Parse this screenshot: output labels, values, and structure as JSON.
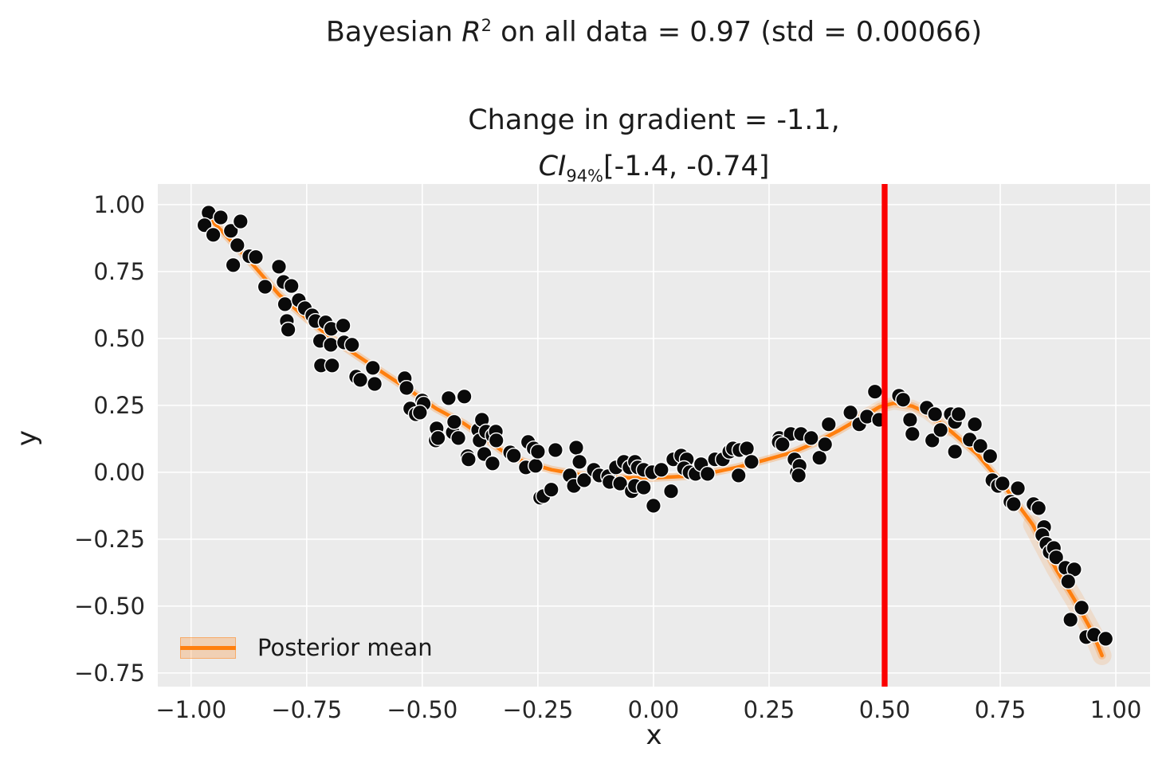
{
  "header": {
    "suptitle": {
      "pre": "Bayesian ",
      "var": "R",
      "sup": "2",
      "post": " on all data = 0.97 (std = 0.00066)"
    },
    "axes_title": {
      "line1": "Change in gradient = -1.1,",
      "ci": "CI",
      "ci_sub": "94%",
      "ci_rest": "[-1.4, -0.74]"
    }
  },
  "axes": {
    "xlabel": "x",
    "ylabel": "y",
    "x_ticks": [
      {
        "v": -1.0,
        "label": "−1.00"
      },
      {
        "v": -0.75,
        "label": "−0.75"
      },
      {
        "v": -0.5,
        "label": "−0.50"
      },
      {
        "v": -0.25,
        "label": "−0.25"
      },
      {
        "v": 0.0,
        "label": "0.00"
      },
      {
        "v": 0.25,
        "label": "0.25"
      },
      {
        "v": 0.5,
        "label": "0.50"
      },
      {
        "v": 0.75,
        "label": "0.75"
      },
      {
        "v": 1.0,
        "label": "1.00"
      }
    ],
    "y_ticks": [
      {
        "v": 1.0,
        "label": "1.00"
      },
      {
        "v": 0.75,
        "label": "0.75"
      },
      {
        "v": 0.5,
        "label": "0.50"
      },
      {
        "v": 0.25,
        "label": "0.25"
      },
      {
        "v": 0.0,
        "label": "0.00"
      },
      {
        "v": -0.25,
        "label": "−0.25"
      },
      {
        "v": -0.5,
        "label": "−0.50"
      },
      {
        "v": -0.75,
        "label": "−0.75"
      }
    ]
  },
  "legend": {
    "label": "Posterior mean"
  },
  "style": {
    "panel_bg": "#ebebeb",
    "grid": "#ffffff",
    "scatter": "#0a0a0a",
    "scatter_edge": "#ffffff",
    "mean": "#ff7f0e",
    "band": "#ff7f0e",
    "vline": "#fb0000",
    "text": "#262626"
  },
  "chart_data": {
    "type": "scatter",
    "title": "Bayesian R^2 on all data = 0.97 (std = 0.00066)",
    "subtitle": "Change in gradient = -1.1, CI_94% [-1.4, -0.74]",
    "xlabel": "x",
    "ylabel": "y",
    "xlim": [
      -1.072,
      1.074
    ],
    "ylim": [
      -0.801,
      1.077
    ],
    "grid": true,
    "legend_position": "lower left",
    "vline_x": 0.5,
    "band": {
      "width": 10,
      "opacity": 0.26,
      "flares": [
        {
          "start": 26,
          "end": 31,
          "width": 16,
          "opacity": 0.14
        },
        {
          "start": 34,
          "end": 38,
          "width": 24,
          "opacity": 0.14
        }
      ]
    },
    "posterior_mean": [
      [
        -0.97,
        0.965
      ],
      [
        -0.93,
        0.895
      ],
      [
        -0.87,
        0.783
      ],
      [
        -0.81,
        0.664
      ],
      [
        -0.75,
        0.574
      ],
      [
        -0.7,
        0.506
      ],
      [
        -0.64,
        0.435
      ],
      [
        -0.58,
        0.366
      ],
      [
        -0.52,
        0.298
      ],
      [
        -0.47,
        0.238
      ],
      [
        -0.41,
        0.182
      ],
      [
        -0.36,
        0.122
      ],
      [
        -0.33,
        0.083
      ],
      [
        -0.28,
        0.039
      ],
      [
        -0.22,
        0.009
      ],
      [
        -0.16,
        -0.009
      ],
      [
        -0.1,
        -0.018
      ],
      [
        -0.05,
        -0.021
      ],
      [
        0.0,
        -0.021
      ],
      [
        0.07,
        -0.015
      ],
      [
        0.13,
        0.0
      ],
      [
        0.18,
        0.018
      ],
      [
        0.24,
        0.045
      ],
      [
        0.3,
        0.074
      ],
      [
        0.35,
        0.11
      ],
      [
        0.4,
        0.155
      ],
      [
        0.45,
        0.205
      ],
      [
        0.49,
        0.245
      ],
      [
        0.52,
        0.258
      ],
      [
        0.56,
        0.247
      ],
      [
        0.59,
        0.223
      ],
      [
        0.64,
        0.158
      ],
      [
        0.7,
        0.068
      ],
      [
        0.76,
        -0.055
      ],
      [
        0.82,
        -0.195
      ],
      [
        0.87,
        -0.36
      ],
      [
        0.91,
        -0.475
      ],
      [
        0.95,
        -0.6
      ],
      [
        0.97,
        -0.685
      ]
    ],
    "scatter": [
      [
        -0.962,
        0.97
      ],
      [
        -0.971,
        0.923
      ],
      [
        -0.952,
        0.887
      ],
      [
        -0.936,
        0.952
      ],
      [
        -0.914,
        0.902
      ],
      [
        -0.893,
        0.937
      ],
      [
        -0.9,
        0.848
      ],
      [
        -0.874,
        0.807
      ],
      [
        -0.909,
        0.774
      ],
      [
        -0.86,
        0.804
      ],
      [
        -0.81,
        0.768
      ],
      [
        -0.84,
        0.693
      ],
      [
        -0.8,
        0.711
      ],
      [
        -0.783,
        0.696
      ],
      [
        -0.797,
        0.628
      ],
      [
        -0.767,
        0.643
      ],
      [
        -0.754,
        0.613
      ],
      [
        -0.793,
        0.565
      ],
      [
        -0.79,
        0.533
      ],
      [
        -0.738,
        0.586
      ],
      [
        -0.731,
        0.565
      ],
      [
        -0.709,
        0.56
      ],
      [
        -0.697,
        0.536
      ],
      [
        -0.721,
        0.491
      ],
      [
        -0.698,
        0.476
      ],
      [
        -0.671,
        0.548
      ],
      [
        -0.669,
        0.485
      ],
      [
        -0.652,
        0.476
      ],
      [
        -0.719,
        0.399
      ],
      [
        -0.695,
        0.399
      ],
      [
        -0.643,
        0.357
      ],
      [
        -0.634,
        0.345
      ],
      [
        -0.607,
        0.39
      ],
      [
        -0.603,
        0.33
      ],
      [
        -0.538,
        0.351
      ],
      [
        -0.534,
        0.315
      ],
      [
        -0.526,
        0.238
      ],
      [
        -0.514,
        0.217
      ],
      [
        -0.5,
        0.268
      ],
      [
        -0.497,
        0.256
      ],
      [
        -0.505,
        0.223
      ],
      [
        -0.469,
        0.164
      ],
      [
        -0.471,
        0.119
      ],
      [
        -0.466,
        0.128
      ],
      [
        -0.443,
        0.277
      ],
      [
        -0.434,
        0.149
      ],
      [
        -0.431,
        0.188
      ],
      [
        -0.422,
        0.128
      ],
      [
        -0.409,
        0.283
      ],
      [
        -0.402,
        0.06
      ],
      [
        -0.4,
        0.048
      ],
      [
        -0.379,
        0.158
      ],
      [
        -0.376,
        0.119
      ],
      [
        -0.371,
        0.196
      ],
      [
        -0.366,
        0.068
      ],
      [
        -0.362,
        0.152
      ],
      [
        -0.348,
        0.137
      ],
      [
        -0.348,
        0.033
      ],
      [
        -0.341,
        0.152
      ],
      [
        -0.34,
        0.119
      ],
      [
        -0.31,
        0.074
      ],
      [
        -0.302,
        0.062
      ],
      [
        -0.276,
        0.018
      ],
      [
        -0.271,
        0.113
      ],
      [
        -0.259,
        0.089
      ],
      [
        -0.255,
        0.024
      ],
      [
        -0.25,
        0.077
      ],
      [
        -0.245,
        -0.095
      ],
      [
        -0.238,
        -0.089
      ],
      [
        -0.221,
        -0.065
      ],
      [
        -0.212,
        0.083
      ],
      [
        -0.181,
        -0.012
      ],
      [
        -0.167,
        0.092
      ],
      [
        -0.16,
        0.039
      ],
      [
        -0.172,
        -0.051
      ],
      [
        -0.15,
        -0.03
      ],
      [
        -0.129,
        0.009
      ],
      [
        -0.117,
        -0.012
      ],
      [
        -0.098,
        -0.015
      ],
      [
        -0.095,
        -0.036
      ],
      [
        -0.081,
        0.018
      ],
      [
        -0.072,
        -0.042
      ],
      [
        -0.064,
        0.039
      ],
      [
        -0.052,
        0.018
      ],
      [
        -0.047,
        -0.071
      ],
      [
        -0.04,
        0.039
      ],
      [
        -0.04,
        -0.051
      ],
      [
        -0.034,
        0.018
      ],
      [
        -0.021,
        0.009
      ],
      [
        -0.021,
        -0.057
      ],
      [
        -0.003,
        0.0
      ],
      [
        0.0,
        -0.125
      ],
      [
        0.017,
        0.009
      ],
      [
        0.038,
        -0.071
      ],
      [
        0.043,
        0.048
      ],
      [
        0.06,
        0.062
      ],
      [
        0.072,
        0.048
      ],
      [
        0.066,
        0.015
      ],
      [
        0.078,
        0.0
      ],
      [
        0.091,
        -0.006
      ],
      [
        0.103,
        0.03
      ],
      [
        0.117,
        -0.006
      ],
      [
        0.133,
        0.048
      ],
      [
        0.15,
        0.048
      ],
      [
        0.164,
        0.077
      ],
      [
        0.172,
        0.089
      ],
      [
        0.186,
        0.083
      ],
      [
        0.202,
        0.089
      ],
      [
        0.212,
        0.039
      ],
      [
        0.184,
        -0.012
      ],
      [
        0.272,
        0.128
      ],
      [
        0.271,
        0.113
      ],
      [
        0.297,
        0.143
      ],
      [
        0.31,
        0.0
      ],
      [
        0.279,
        0.104
      ],
      [
        0.319,
        0.143
      ],
      [
        0.341,
        0.128
      ],
      [
        0.305,
        0.048
      ],
      [
        0.316,
        0.024
      ],
      [
        0.314,
        -0.012
      ],
      [
        0.359,
        0.054
      ],
      [
        0.371,
        0.104
      ],
      [
        0.379,
        0.179
      ],
      [
        0.426,
        0.223
      ],
      [
        0.445,
        0.179
      ],
      [
        0.462,
        0.208
      ],
      [
        0.479,
        0.301
      ],
      [
        0.488,
        0.196
      ],
      [
        0.531,
        0.286
      ],
      [
        0.54,
        0.271
      ],
      [
        0.555,
        0.196
      ],
      [
        0.56,
        0.143
      ],
      [
        0.591,
        0.241
      ],
      [
        0.609,
        0.217
      ],
      [
        0.603,
        0.119
      ],
      [
        0.621,
        0.158
      ],
      [
        0.643,
        0.217
      ],
      [
        0.652,
        0.188
      ],
      [
        0.66,
        0.217
      ],
      [
        0.695,
        0.179
      ],
      [
        0.652,
        0.077
      ],
      [
        0.684,
        0.122
      ],
      [
        0.707,
        0.098
      ],
      [
        0.728,
        0.06
      ],
      [
        0.733,
        -0.03
      ],
      [
        0.745,
        -0.051
      ],
      [
        0.755,
        -0.042
      ],
      [
        0.772,
        -0.11
      ],
      [
        0.788,
        -0.06
      ],
      [
        0.779,
        -0.119
      ],
      [
        0.822,
        -0.119
      ],
      [
        0.833,
        -0.134
      ],
      [
        0.845,
        -0.205
      ],
      [
        0.841,
        -0.235
      ],
      [
        0.85,
        -0.268
      ],
      [
        0.857,
        -0.298
      ],
      [
        0.866,
        -0.283
      ],
      [
        0.871,
        -0.318
      ],
      [
        0.891,
        -0.357
      ],
      [
        0.91,
        -0.363
      ],
      [
        0.897,
        -0.408
      ],
      [
        0.926,
        -0.506
      ],
      [
        0.902,
        -0.551
      ],
      [
        0.936,
        -0.616
      ],
      [
        0.953,
        -0.607
      ],
      [
        0.978,
        -0.622
      ]
    ]
  }
}
